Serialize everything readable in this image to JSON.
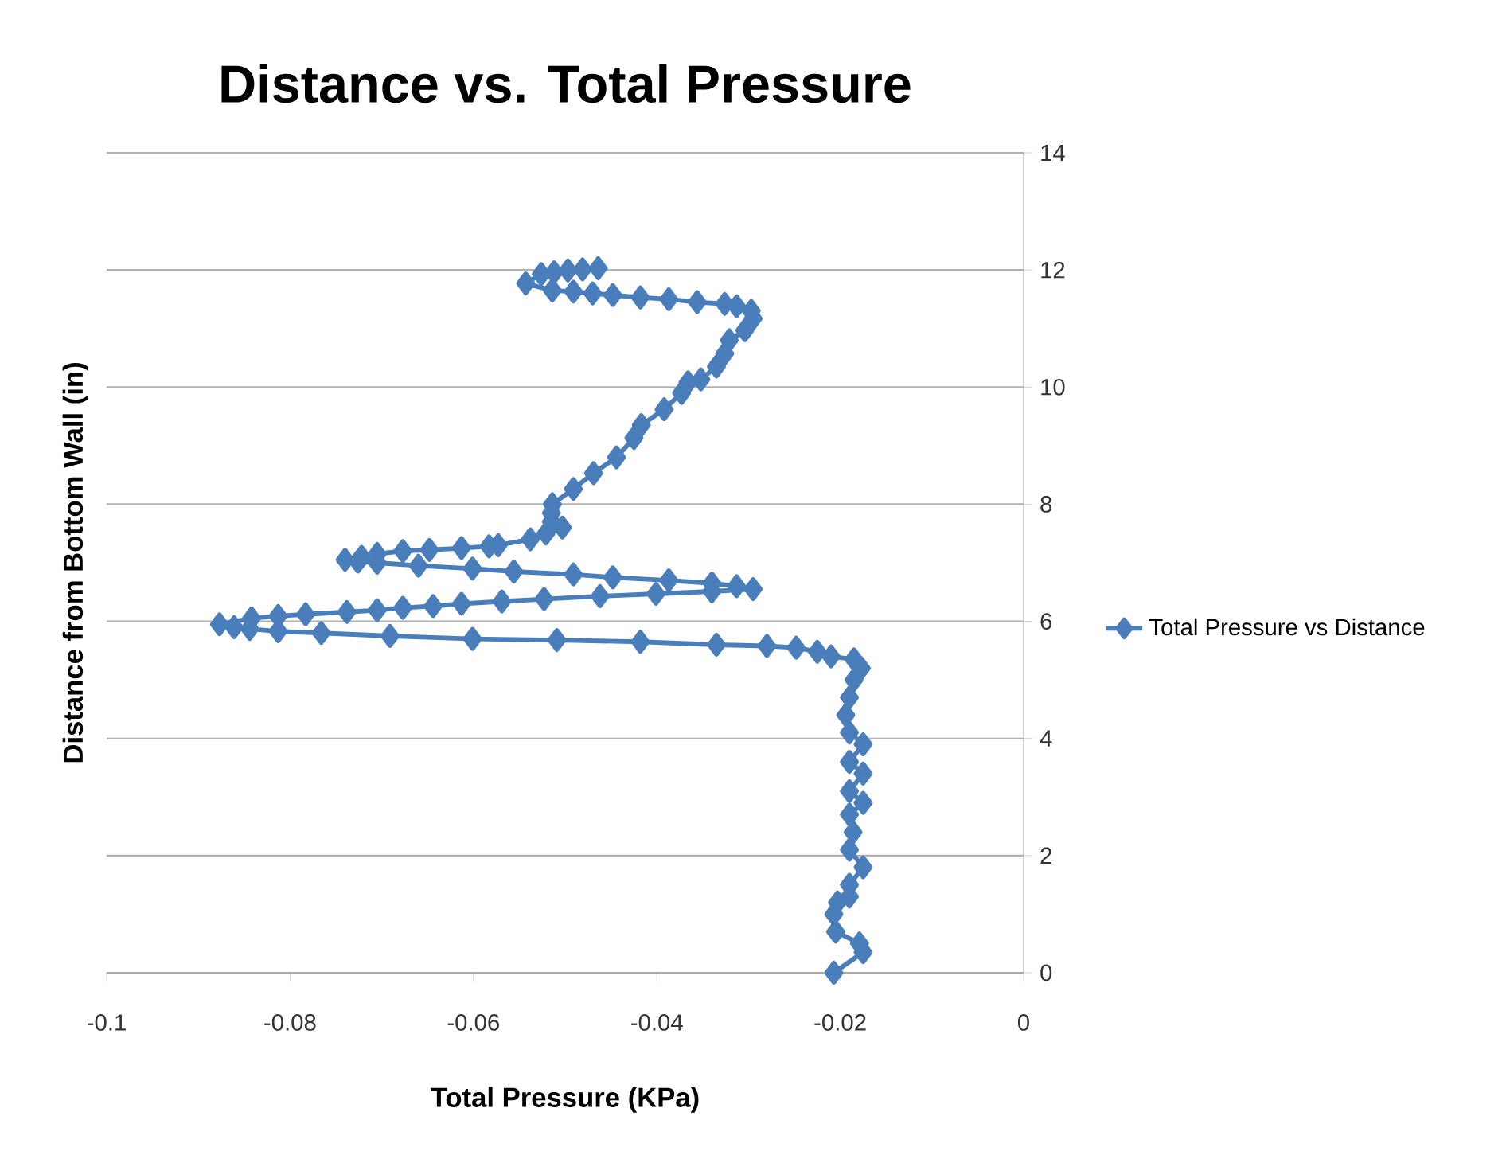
{
  "chart_data": {
    "type": "line",
    "title": "Distance vs. Total Pressure",
    "xlabel": "Total Pressure (KPa)",
    "ylabel": "Distance from Bottom Wall (in)",
    "xlim": [
      -0.1,
      0
    ],
    "ylim": [
      0,
      14
    ],
    "xticks": [
      -0.1,
      -0.08,
      -0.06,
      -0.04,
      -0.02,
      0
    ],
    "yticks": [
      0,
      2,
      4,
      6,
      8,
      10,
      12,
      14
    ],
    "grid": "y",
    "legend": "right",
    "marker": "diamond",
    "line_style": "solid",
    "series": [
      {
        "name": "Total Pressure vs Distance",
        "color": "#4a7ebb",
        "x": [
          -0.0207,
          -0.0175,
          -0.0179,
          -0.0205,
          -0.0207,
          -0.0203,
          -0.019,
          -0.019,
          -0.0175,
          -0.019,
          -0.0186,
          -0.019,
          -0.0175,
          -0.019,
          -0.0175,
          -0.019,
          -0.0175,
          -0.019,
          -0.0194,
          -0.019,
          -0.0185,
          -0.0177,
          -0.0185,
          -0.021,
          -0.0225,
          -0.0248,
          -0.028,
          -0.0335,
          -0.0418,
          -0.0509,
          -0.0601,
          -0.0691,
          -0.0766,
          -0.0813,
          -0.0844,
          -0.0861,
          -0.0877,
          -0.0842,
          -0.0813,
          -0.0783,
          -0.0738,
          -0.0705,
          -0.0677,
          -0.0644,
          -0.0613,
          -0.0569,
          -0.0523,
          -0.0462,
          -0.0401,
          -0.034,
          -0.0295,
          -0.0313,
          -0.034,
          -0.0387,
          -0.0448,
          -0.0491,
          -0.0556,
          -0.0601,
          -0.066,
          -0.0705,
          -0.0726,
          -0.074,
          -0.0722,
          -0.0705,
          -0.0677,
          -0.0648,
          -0.0613,
          -0.0583,
          -0.0573,
          -0.0538,
          -0.0521,
          -0.0503,
          -0.0515,
          -0.0515,
          -0.0514,
          -0.0491,
          -0.0469,
          -0.0444,
          -0.0425,
          -0.0417,
          -0.0392,
          -0.0373,
          -0.0366,
          -0.0352,
          -0.0335,
          -0.0326,
          -0.0321,
          -0.0304,
          -0.0295,
          -0.0297,
          -0.0313,
          -0.0326,
          -0.0356,
          -0.0387,
          -0.0418,
          -0.0448,
          -0.047,
          -0.0491,
          -0.0514,
          -0.0543,
          -0.0526,
          -0.0512,
          -0.0497,
          -0.0481,
          -0.0464
        ],
        "values": [
          0,
          0.35,
          0.5,
          0.7,
          1.0,
          1.2,
          1.3,
          1.5,
          1.8,
          2.1,
          2.4,
          2.7,
          2.9,
          3.1,
          3.4,
          3.6,
          3.9,
          4.1,
          4.4,
          4.7,
          5.0,
          5.2,
          5.35,
          5.4,
          5.48,
          5.55,
          5.58,
          5.6,
          5.65,
          5.68,
          5.7,
          5.75,
          5.8,
          5.83,
          5.87,
          5.9,
          5.95,
          6.05,
          6.09,
          6.12,
          6.16,
          6.19,
          6.23,
          6.26,
          6.3,
          6.34,
          6.38,
          6.43,
          6.47,
          6.51,
          6.55,
          6.6,
          6.65,
          6.7,
          6.75,
          6.8,
          6.85,
          6.9,
          6.95,
          7.0,
          7.02,
          7.05,
          7.1,
          7.15,
          7.2,
          7.22,
          7.25,
          7.28,
          7.3,
          7.4,
          7.5,
          7.6,
          7.7,
          7.85,
          8.0,
          8.26,
          8.53,
          8.8,
          9.13,
          9.35,
          9.62,
          9.9,
          10.08,
          10.13,
          10.35,
          10.57,
          10.8,
          10.97,
          11.17,
          11.3,
          11.38,
          11.42,
          11.45,
          11.5,
          11.53,
          11.57,
          11.6,
          11.63,
          11.65,
          11.77,
          11.93,
          11.96,
          11.99,
          12.01,
          12.03
        ]
      }
    ]
  }
}
